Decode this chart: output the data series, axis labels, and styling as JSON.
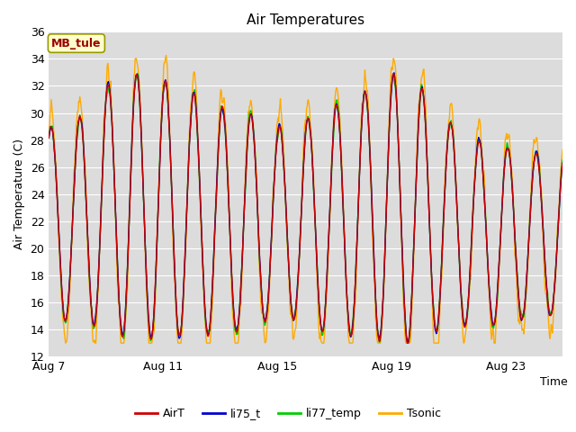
{
  "title": "Air Temperatures",
  "xlabel": "Time",
  "ylabel": "Air Temperature (C)",
  "ylim": [
    12,
    36
  ],
  "yticks": [
    12,
    14,
    16,
    18,
    20,
    22,
    24,
    26,
    28,
    30,
    32,
    34,
    36
  ],
  "plot_bg_color": "#dcdcdc",
  "fig_bg_color": "#ffffff",
  "grid_color": "#ffffff",
  "line_colors": {
    "AirT": "#cc0000",
    "li75_t": "#0000cc",
    "li77_temp": "#00cc00",
    "Tsonic": "#ffaa00"
  },
  "line_width": 1.0,
  "legend_label": "MB_tule",
  "legend_label_color": "#990000",
  "legend_box_facecolor": "#ffffcc",
  "legend_box_edgecolor": "#999900",
  "x_tick_labels": [
    "Aug 7",
    "Aug 11",
    "Aug 15",
    "Aug 19",
    "Aug 23"
  ],
  "x_tick_day_offsets": [
    0,
    4,
    8,
    12,
    16
  ],
  "total_days": 18,
  "samples_per_day": 48,
  "title_fontsize": 11,
  "axis_label_fontsize": 9,
  "tick_fontsize": 9
}
